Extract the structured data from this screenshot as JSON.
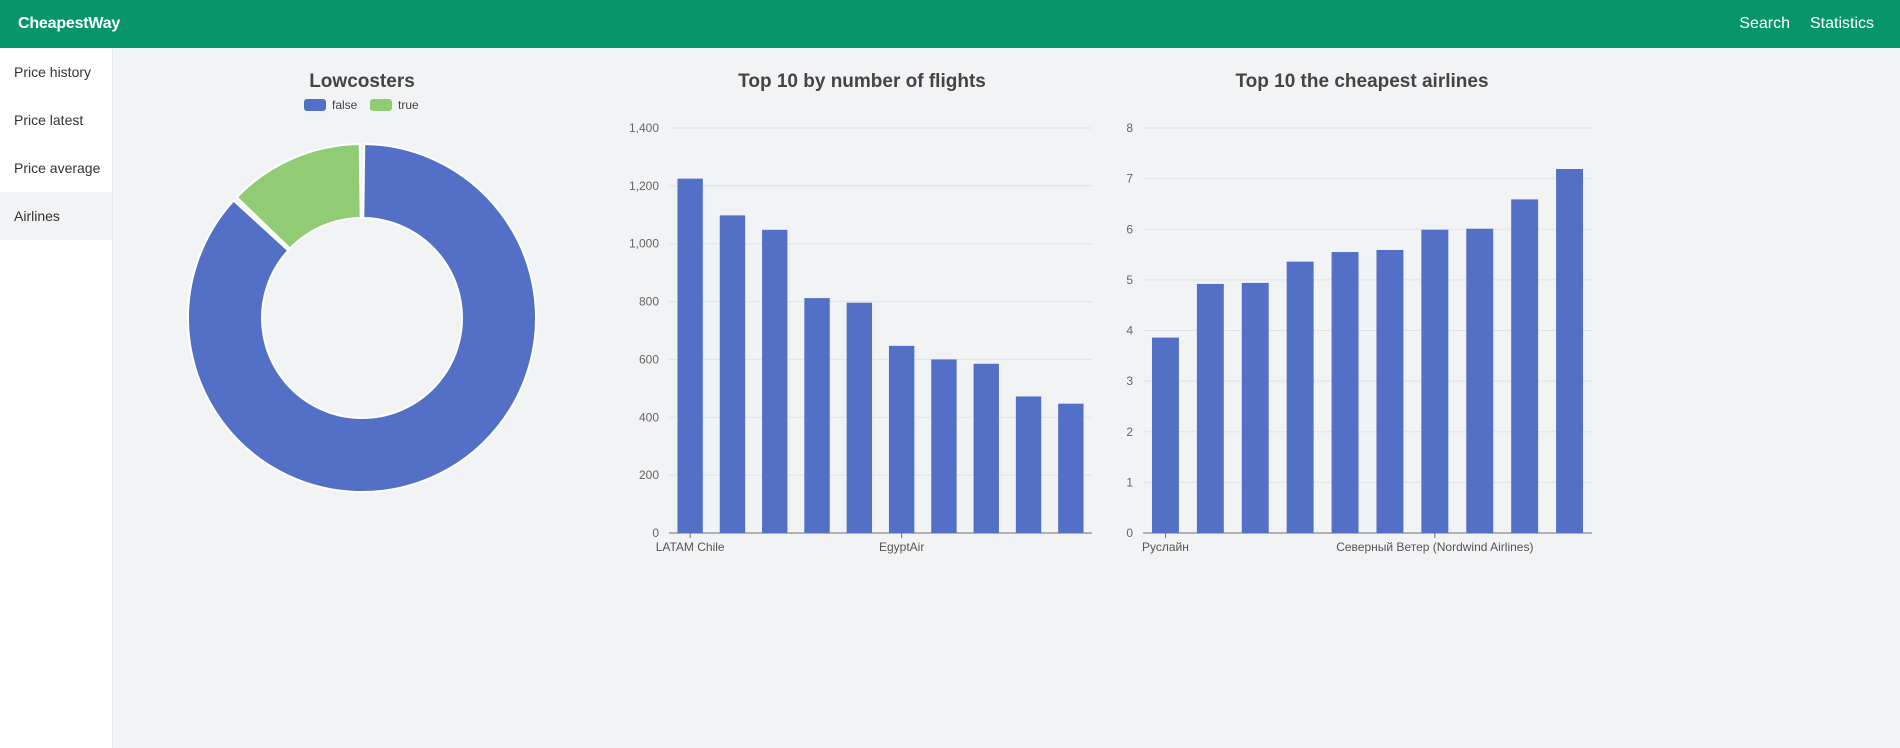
{
  "app": {
    "brand": "CheapestWay",
    "nav": {
      "search": "Search",
      "statistics": "Statistics"
    }
  },
  "sidebar": {
    "items": [
      {
        "label": "Price history"
      },
      {
        "label": "Price latest"
      },
      {
        "label": "Price average"
      },
      {
        "label": "Airlines"
      }
    ]
  },
  "colors": {
    "header": "#079669",
    "primary": "#5470c6",
    "secondary": "#91cc75"
  },
  "chart_data": [
    {
      "type": "pie",
      "title": "Lowcosters",
      "donut": true,
      "legend_position": "top-center",
      "slices": [
        {
          "label": "false",
          "value": 87,
          "color": "#5470c6"
        },
        {
          "label": "true",
          "value": 13,
          "color": "#91cc75"
        }
      ]
    },
    {
      "type": "bar",
      "title": "Top 10 by number of flights",
      "ylim": [
        0,
        1400
      ],
      "yticks": [
        "0",
        "200",
        "400",
        "600",
        "800",
        "1,000",
        "1,200",
        "1,400"
      ],
      "categories_shown": [
        "LATAM Chile",
        "",
        "",
        "",
        "",
        "EgyptAir",
        "",
        "",
        "",
        ""
      ],
      "values": [
        1225,
        1098,
        1048,
        812,
        796,
        647,
        600,
        585,
        472,
        447
      ],
      "grid": true
    },
    {
      "type": "bar",
      "title": "Top 10 the cheapest airlines",
      "ylim": [
        0,
        8
      ],
      "yticks": [
        "0",
        "1",
        "2",
        "3",
        "4",
        "5",
        "6",
        "7",
        "8"
      ],
      "categories_shown": [
        "Руслайн",
        "",
        "",
        "",
        "",
        "",
        "Северный Ветер (Nordwind Airlines)",
        "",
        "",
        ""
      ],
      "values": [
        3.86,
        4.92,
        4.94,
        5.36,
        5.55,
        5.59,
        5.99,
        6.01,
        6.59,
        7.19
      ],
      "grid": true
    }
  ]
}
